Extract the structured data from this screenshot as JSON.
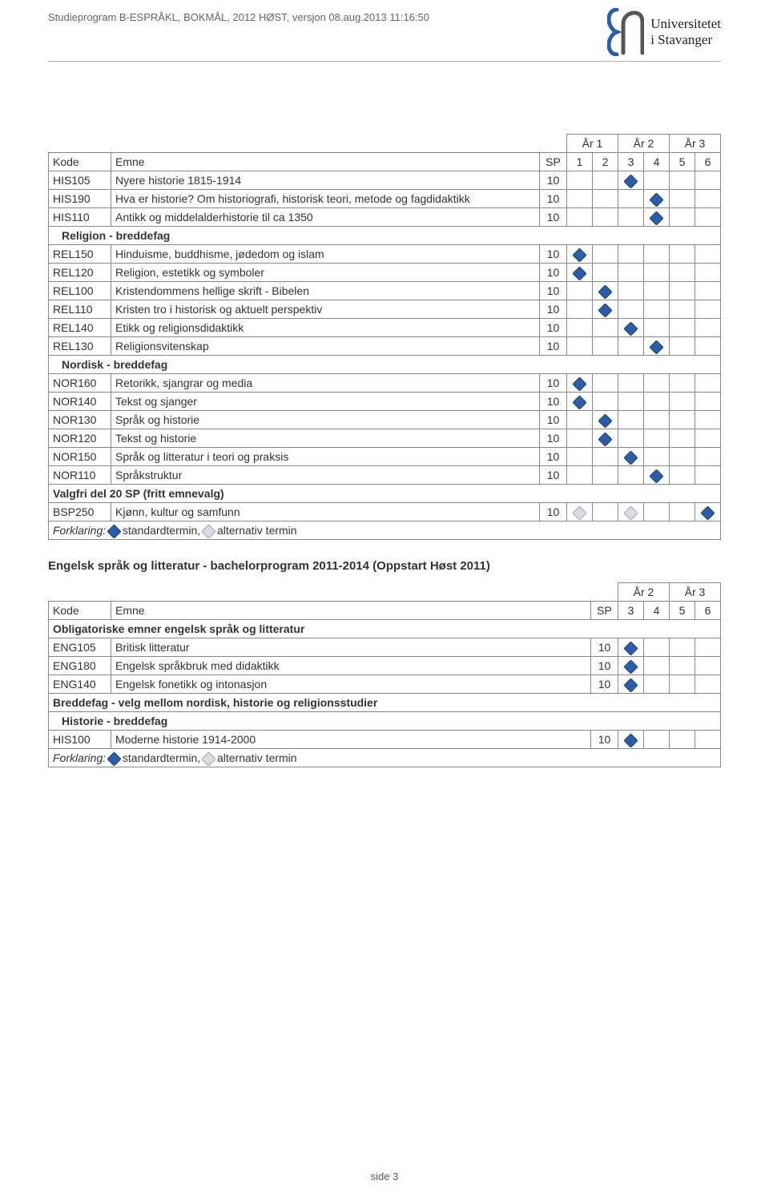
{
  "header": {
    "title": "Studieprogram B-ESPRÅKL, BOKMÅL, 2012 HØST, versjon 08.aug.2013 11:16:50",
    "uni_line1": "Universitetet",
    "uni_line2": "i Stavanger"
  },
  "table1": {
    "year_labels": [
      "År 1",
      "År 2",
      "År 3"
    ],
    "col_kode": "Kode",
    "col_emne": "Emne",
    "col_sp": "SP",
    "sem_labels": [
      "1",
      "2",
      "3",
      "4",
      "5",
      "6"
    ],
    "rows": [
      {
        "type": "course",
        "kode": "HIS105",
        "emne": "Nyere historie 1815-1914",
        "sp": "10",
        "marks": [
          null,
          null,
          "std",
          null,
          null,
          null
        ]
      },
      {
        "type": "course",
        "kode": "HIS190",
        "emne": "Hva er historie? Om historiografi, historisk teori, metode og fagdidaktikk",
        "sp": "10",
        "marks": [
          null,
          null,
          null,
          "std",
          null,
          null
        ]
      },
      {
        "type": "course",
        "kode": "HIS110",
        "emne": "Antikk og middelalderhistorie til ca 1350",
        "sp": "10",
        "marks": [
          null,
          null,
          null,
          "std",
          null,
          null
        ]
      },
      {
        "type": "section",
        "label": "Religion - breddefag",
        "indent": 1
      },
      {
        "type": "course",
        "kode": "REL150",
        "emne": "Hinduisme, buddhisme, jødedom og islam",
        "sp": "10",
        "marks": [
          "std",
          null,
          null,
          null,
          null,
          null
        ]
      },
      {
        "type": "course",
        "kode": "REL120",
        "emne": "Religion, estetikk og symboler",
        "sp": "10",
        "marks": [
          "std",
          null,
          null,
          null,
          null,
          null
        ]
      },
      {
        "type": "course",
        "kode": "REL100",
        "emne": "Kristendommens hellige skrift - Bibelen",
        "sp": "10",
        "marks": [
          null,
          "std",
          null,
          null,
          null,
          null
        ]
      },
      {
        "type": "course",
        "kode": "REL110",
        "emne": "Kristen tro i historisk og aktuelt perspektiv",
        "sp": "10",
        "marks": [
          null,
          "std",
          null,
          null,
          null,
          null
        ]
      },
      {
        "type": "course",
        "kode": "REL140",
        "emne": "Etikk og religionsdidaktikk",
        "sp": "10",
        "marks": [
          null,
          null,
          "std",
          null,
          null,
          null
        ]
      },
      {
        "type": "course",
        "kode": "REL130",
        "emne": "Religionsvitenskap",
        "sp": "10",
        "marks": [
          null,
          null,
          null,
          "std",
          null,
          null
        ]
      },
      {
        "type": "section",
        "label": "Nordisk - breddefag",
        "indent": 1
      },
      {
        "type": "course",
        "kode": "NOR160",
        "emne": "Retorikk, sjangrar og media",
        "sp": "10",
        "marks": [
          "std",
          null,
          null,
          null,
          null,
          null
        ]
      },
      {
        "type": "course",
        "kode": "NOR140",
        "emne": "Tekst og sjanger",
        "sp": "10",
        "marks": [
          "std",
          null,
          null,
          null,
          null,
          null
        ]
      },
      {
        "type": "course",
        "kode": "NOR130",
        "emne": "Språk og historie",
        "sp": "10",
        "marks": [
          null,
          "std",
          null,
          null,
          null,
          null
        ]
      },
      {
        "type": "course",
        "kode": "NOR120",
        "emne": "Tekst og historie",
        "sp": "10",
        "marks": [
          null,
          "std",
          null,
          null,
          null,
          null
        ]
      },
      {
        "type": "course",
        "kode": "NOR150",
        "emne": "Språk og litteratur i teori og praksis",
        "sp": "10",
        "marks": [
          null,
          null,
          "std",
          null,
          null,
          null
        ]
      },
      {
        "type": "course",
        "kode": "NOR110",
        "emne": "Språkstruktur",
        "sp": "10",
        "marks": [
          null,
          null,
          null,
          "std",
          null,
          null
        ]
      },
      {
        "type": "section",
        "label": "Valgfri del 20 SP (fritt emnevalg)",
        "indent": 0
      },
      {
        "type": "course",
        "kode": "BSP250",
        "emne": "Kjønn, kultur og samfunn",
        "sp": "10",
        "marks": [
          "alt",
          null,
          "alt",
          null,
          null,
          "std"
        ]
      }
    ]
  },
  "forklaring": {
    "label": "Forklaring:",
    "std": "standardtermin,",
    "alt": "alternativ termin"
  },
  "section2_title": "Engelsk språk og litteratur - bachelorprogram 2011-2014 (Oppstart Høst 2011)",
  "table2": {
    "year_labels": [
      "År 2",
      "År 3"
    ],
    "col_kode": "Kode",
    "col_emne": "Emne",
    "col_sp": "SP",
    "sem_labels": [
      "3",
      "4",
      "5",
      "6"
    ],
    "rows": [
      {
        "type": "section",
        "label": "Obligatoriske emner engelsk språk og litteratur",
        "indent": 0
      },
      {
        "type": "course",
        "kode": "ENG105",
        "emne": "Britisk litteratur",
        "sp": "10",
        "marks": [
          "std",
          null,
          null,
          null
        ]
      },
      {
        "type": "course",
        "kode": "ENG180",
        "emne": "Engelsk språkbruk med didaktikk",
        "sp": "10",
        "marks": [
          "std",
          null,
          null,
          null
        ]
      },
      {
        "type": "course",
        "kode": "ENG140",
        "emne": "Engelsk fonetikk og intonasjon",
        "sp": "10",
        "marks": [
          "std",
          null,
          null,
          null
        ]
      },
      {
        "type": "section",
        "label": "Breddefag - velg mellom nordisk, historie og religionsstudier",
        "indent": 0
      },
      {
        "type": "section",
        "label": "Historie - breddefag",
        "indent": 1
      },
      {
        "type": "course",
        "kode": "HIS100",
        "emne": "Moderne historie 1914-2000",
        "sp": "10",
        "marks": [
          "std",
          null,
          null,
          null
        ]
      }
    ]
  },
  "footer": "side 3",
  "colors": {
    "std_dot": "#2b5ea8",
    "alt_dot": "#d9dde3",
    "border": "#888888"
  }
}
